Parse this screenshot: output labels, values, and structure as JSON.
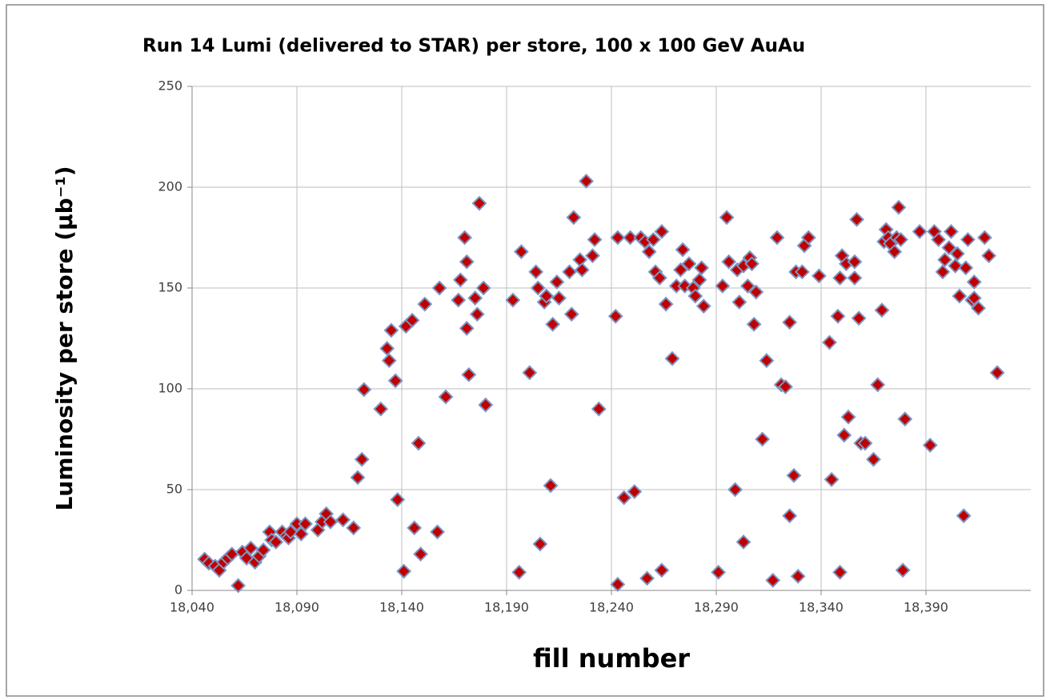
{
  "chart_data": {
    "type": "scatter",
    "title": "Run 14 Lumi (delivered to STAR) per store, 100 x 100 GeV AuAu",
    "xlabel": "fill number",
    "ylabel": "Luminosity per store (μb⁻¹)",
    "xlim": [
      18040,
      18440
    ],
    "ylim": [
      0,
      250
    ],
    "xticks": [
      {
        "value": 18040,
        "label": "18,040"
      },
      {
        "value": 18090,
        "label": "18,090"
      },
      {
        "value": 18140,
        "label": "18,140"
      },
      {
        "value": 18190,
        "label": "18,190"
      },
      {
        "value": 18240,
        "label": "18,240"
      },
      {
        "value": 18290,
        "label": "18,290"
      },
      {
        "value": 18340,
        "label": "18,340"
      },
      {
        "value": 18390,
        "label": "18,390"
      }
    ],
    "yticks": [
      0,
      50,
      100,
      150,
      200,
      250
    ],
    "grid": true,
    "color": "#c00000",
    "edgecolor": "#7a96c4",
    "x": [
      18046,
      18048,
      18051,
      18053,
      18055,
      18057,
      18059,
      18062,
      18064,
      18066,
      18068,
      18070,
      18072,
      18074,
      18077,
      18078,
      18080,
      18083,
      18085,
      18086,
      18087,
      18090,
      18092,
      18094,
      18100,
      18102,
      18104,
      18106,
      18112,
      18117,
      18119,
      18121,
      18122,
      18130,
      18133,
      18134,
      18135,
      18137,
      18138,
      18141,
      18142,
      18145,
      18146,
      18148,
      18149,
      18151,
      18157,
      18158,
      18161,
      18167,
      18168,
      18170,
      18171,
      18171,
      18172,
      18175,
      18176,
      18177,
      18179,
      18180,
      18193,
      18196,
      18197,
      18201,
      18204,
      18205,
      18206,
      18208,
      18209,
      18211,
      18212,
      18214,
      18215,
      18220,
      18221,
      18222,
      18225,
      18226,
      18228,
      18231,
      18232,
      18234,
      18242,
      18243,
      18243,
      18246,
      18249,
      18251,
      18254,
      18256,
      18257,
      18258,
      18260,
      18261,
      18263,
      18264,
      18264,
      18266,
      18269,
      18271,
      18273,
      18274,
      18275,
      18277,
      18279,
      18280,
      18282,
      18283,
      18284,
      18291,
      18293,
      18295,
      18296,
      18299,
      18300,
      18301,
      18303,
      18303,
      18305,
      18306,
      18307,
      18308,
      18309,
      18312,
      18314,
      18317,
      18319,
      18321,
      18323,
      18325,
      18325,
      18327,
      18328,
      18329,
      18331,
      18332,
      18334,
      18339,
      18344,
      18345,
      18348,
      18349,
      18349,
      18350,
      18351,
      18352,
      18353,
      18356,
      18356,
      18357,
      18358,
      18359,
      18361,
      18365,
      18367,
      18369,
      18370,
      18371,
      18372,
      18373,
      18375,
      18376,
      18377,
      18378,
      18379,
      18380,
      18387,
      18392,
      18394,
      18396,
      18398,
      18399,
      18401,
      18402,
      18404,
      18405,
      18406,
      18408,
      18409,
      18410,
      18412,
      18413,
      18413,
      18415,
      18418,
      18420,
      18424
    ],
    "y": [
      15.5,
      13.5,
      12,
      10,
      14,
      16,
      18,
      2.4,
      19,
      16,
      21,
      14,
      17,
      20,
      29,
      25,
      24,
      29,
      27,
      26,
      29,
      33,
      28,
      33,
      30,
      34,
      38,
      34,
      35,
      31,
      56,
      65,
      99.6,
      90,
      120,
      114,
      129,
      104,
      45,
      9.5,
      131,
      134,
      31,
      73,
      18,
      142,
      29,
      150,
      96,
      144,
      154,
      175,
      130,
      163,
      107,
      145,
      137,
      192,
      150,
      92,
      144,
      9,
      168,
      108,
      158,
      150,
      23,
      143,
      146,
      52,
      132,
      153,
      145,
      158,
      137,
      185,
      164,
      159,
      203,
      166,
      174,
      90,
      136,
      175,
      3,
      46,
      175,
      49,
      175,
      173,
      6,
      168,
      174,
      158,
      155,
      10,
      178,
      142,
      115,
      151,
      159,
      169,
      151,
      162,
      150,
      146,
      154,
      160,
      141,
      9,
      151,
      185,
      163,
      50,
      159,
      143,
      24,
      161,
      151,
      165,
      162,
      132,
      148,
      75,
      114,
      5,
      175,
      102,
      101,
      133,
      37,
      57,
      158,
      7,
      158,
      171,
      175,
      156,
      123,
      55,
      136,
      155,
      9,
      166,
      77,
      162,
      86,
      163,
      155,
      184,
      135,
      73,
      73,
      65,
      102,
      139,
      173,
      179,
      175,
      172,
      168,
      175,
      190,
      174,
      10,
      85,
      178,
      72,
      178,
      174,
      158,
      164,
      170,
      178,
      161,
      167,
      146,
      37,
      160,
      174,
      144,
      153,
      145,
      140,
      175,
      166,
      108
    ]
  }
}
